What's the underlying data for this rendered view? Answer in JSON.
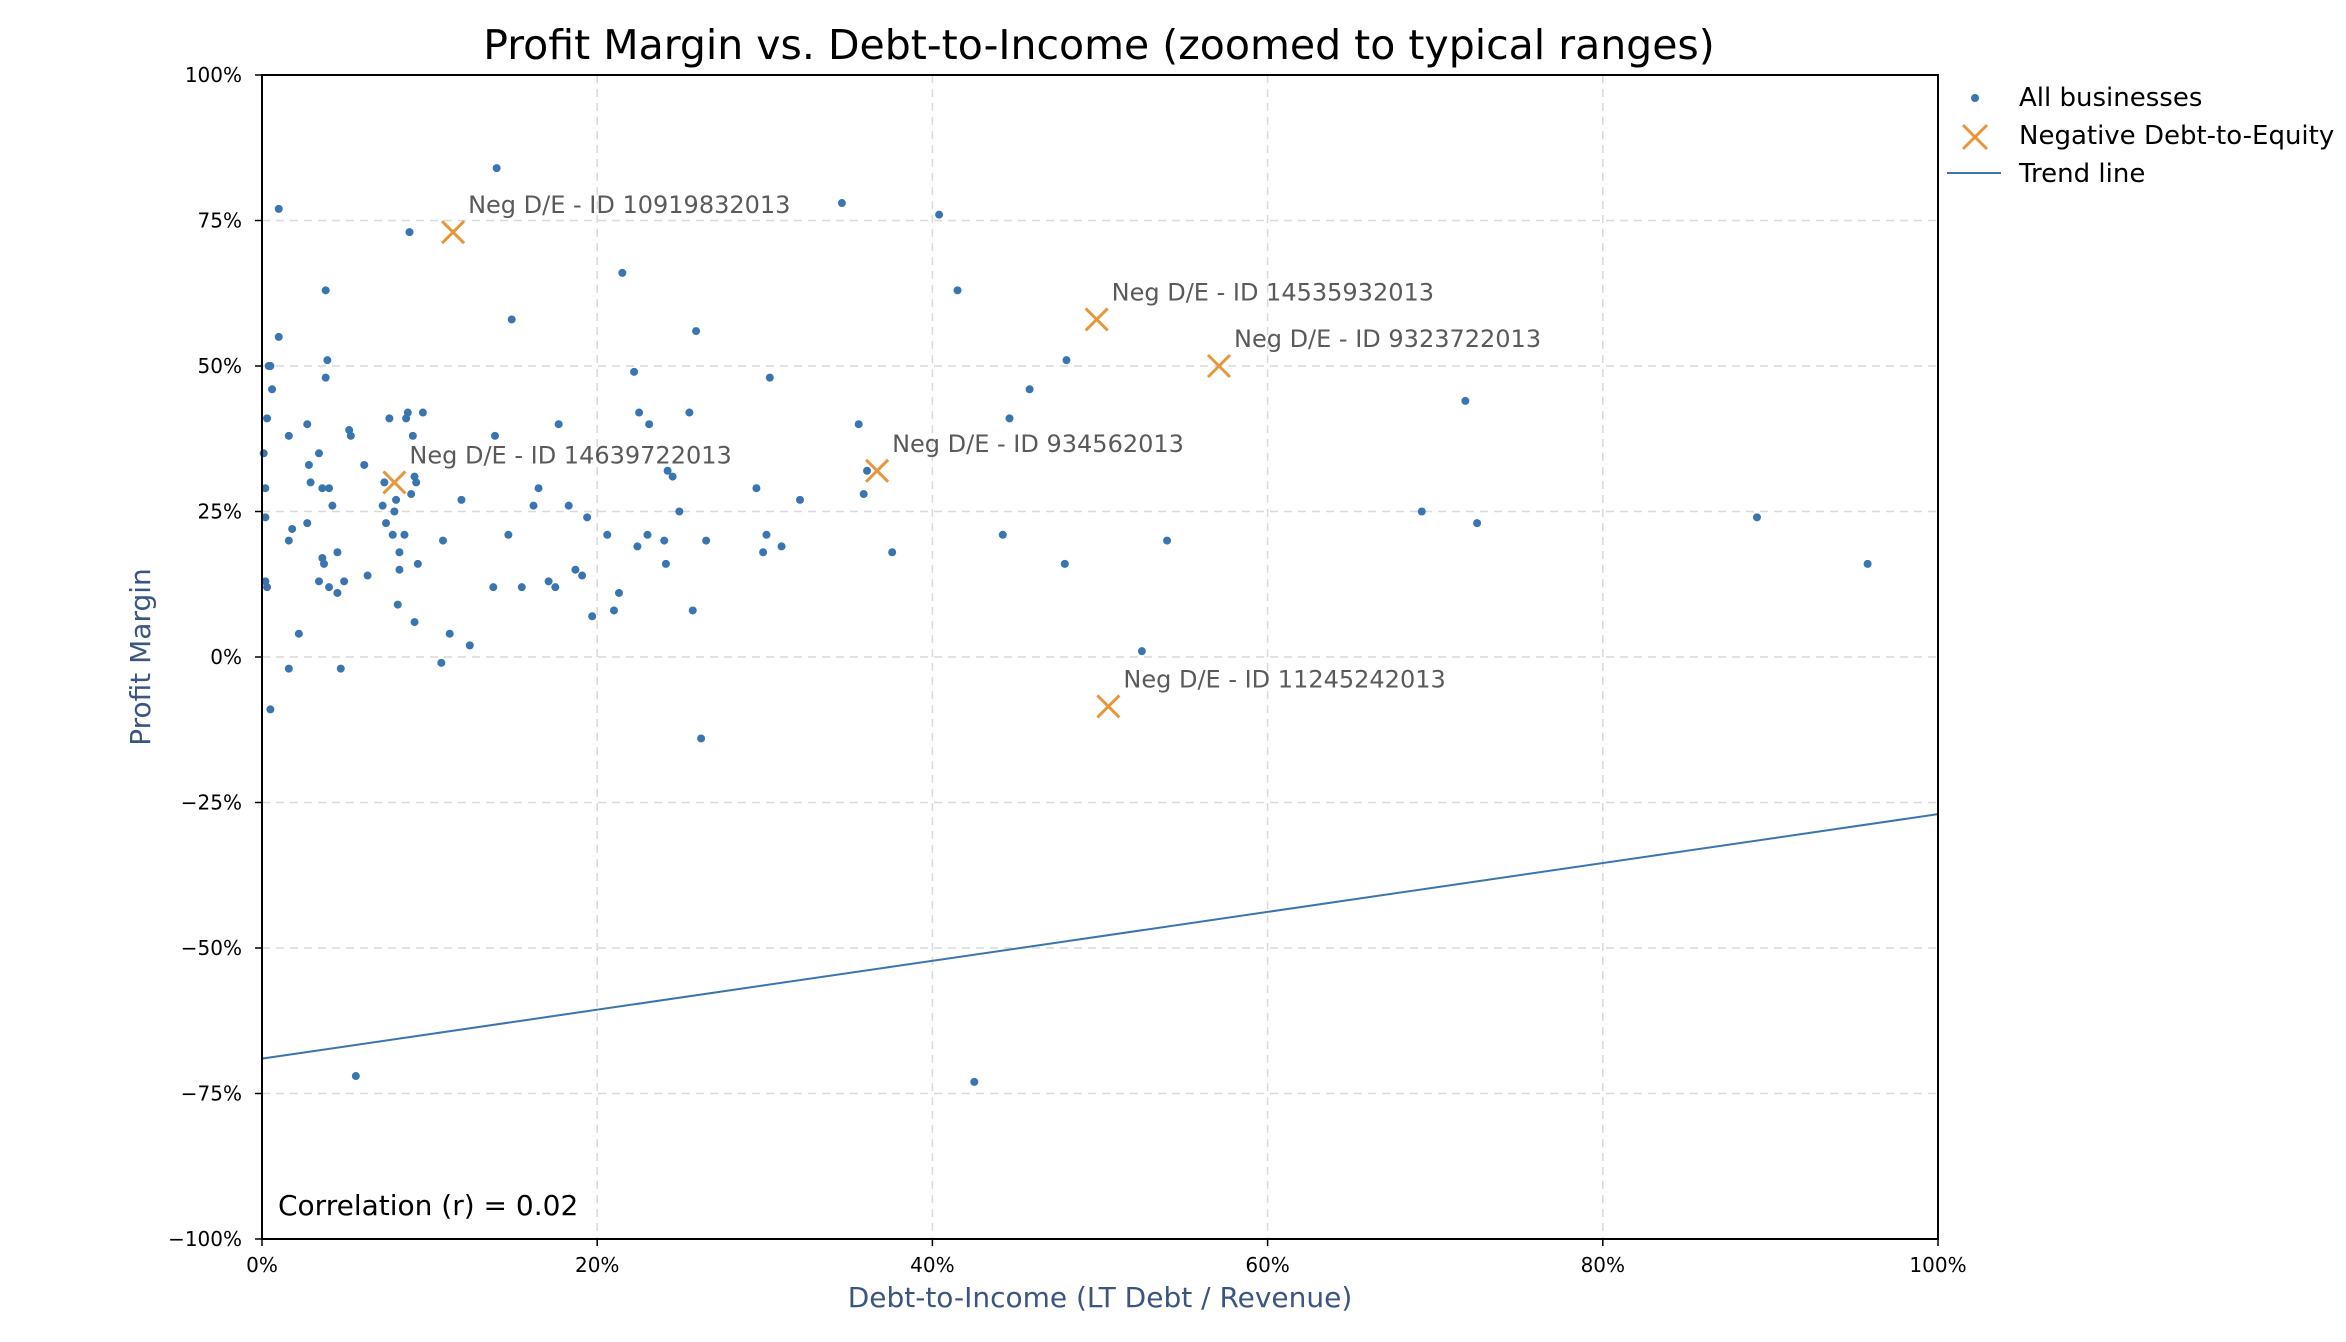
{
  "chart_data": {
    "type": "scatter",
    "title": "Profit Margin vs. Debt-to-Income (zoomed to typical ranges)",
    "xlabel": "Debt-to-Income (LT Debt / Revenue)",
    "ylabel": "Profit Margin",
    "xlim": [
      0,
      1
    ],
    "ylim": [
      -1,
      1
    ],
    "x_ticks": [
      {
        "value": 0,
        "label": "0%"
      },
      {
        "value": 0.2,
        "label": "20%"
      },
      {
        "value": 0.4,
        "label": "40%"
      },
      {
        "value": 0.6,
        "label": "60%"
      },
      {
        "value": 0.8,
        "label": "80%"
      },
      {
        "value": 1.0,
        "label": "100%"
      }
    ],
    "y_ticks": [
      {
        "value": 1.0,
        "label": "100%"
      },
      {
        "value": 0.75,
        "label": "75%"
      },
      {
        "value": 0.5,
        "label": "50%"
      },
      {
        "value": 0.25,
        "label": "25%"
      },
      {
        "value": 0,
        "label": "0%"
      },
      {
        "value": -0.25,
        "label": "−25%"
      },
      {
        "value": -0.5,
        "label": "−50%"
      },
      {
        "value": -0.75,
        "label": "−75%"
      },
      {
        "value": -1.0,
        "label": "−100%"
      }
    ],
    "grid": true,
    "legend_position": "outside-top-right",
    "colors": {
      "all": "#3a75b0",
      "neg": "#e8963b",
      "trend": "#3a75b0",
      "grid": "#d9d9d9"
    },
    "series": [
      {
        "name": "All businesses",
        "marker": "dot",
        "points": [
          [
            0.001,
            0.35
          ],
          [
            0.002,
            0.29
          ],
          [
            0.002,
            0.24
          ],
          [
            0.002,
            0.13
          ],
          [
            0.003,
            0.12
          ],
          [
            0.003,
            0.41
          ],
          [
            0.004,
            0.5
          ],
          [
            0.005,
            0.5
          ],
          [
            0.005,
            -0.09
          ],
          [
            0.006,
            0.46
          ],
          [
            0.01,
            0.77
          ],
          [
            0.01,
            0.55
          ],
          [
            0.016,
            0.38
          ],
          [
            0.016,
            0.2
          ],
          [
            0.016,
            -0.02
          ],
          [
            0.018,
            0.22
          ],
          [
            0.022,
            0.04
          ],
          [
            0.027,
            0.4
          ],
          [
            0.027,
            0.23
          ],
          [
            0.028,
            0.33
          ],
          [
            0.029,
            0.3
          ],
          [
            0.034,
            0.35
          ],
          [
            0.034,
            0.13
          ],
          [
            0.036,
            0.29
          ],
          [
            0.036,
            0.17
          ],
          [
            0.037,
            0.16
          ],
          [
            0.038,
            0.63
          ],
          [
            0.038,
            0.48
          ],
          [
            0.039,
            0.51
          ],
          [
            0.04,
            0.29
          ],
          [
            0.04,
            0.12
          ],
          [
            0.042,
            0.26
          ],
          [
            0.045,
            0.18
          ],
          [
            0.045,
            0.11
          ],
          [
            0.047,
            -0.02
          ],
          [
            0.049,
            0.13
          ],
          [
            0.052,
            0.39
          ],
          [
            0.053,
            0.38
          ],
          [
            0.061,
            0.33
          ],
          [
            0.063,
            0.14
          ],
          [
            0.072,
            0.26
          ],
          [
            0.073,
            0.3
          ],
          [
            0.074,
            0.23
          ],
          [
            0.076,
            0.41
          ],
          [
            0.078,
            0.21
          ],
          [
            0.079,
            0.25
          ],
          [
            0.08,
            0.27
          ],
          [
            0.081,
            0.09
          ],
          [
            0.082,
            0.18
          ],
          [
            0.082,
            0.15
          ],
          [
            0.085,
            0.21
          ],
          [
            0.086,
            0.41
          ],
          [
            0.087,
            0.42
          ],
          [
            0.088,
            0.73
          ],
          [
            0.089,
            0.28
          ],
          [
            0.09,
            0.38
          ],
          [
            0.091,
            0.31
          ],
          [
            0.091,
            0.06
          ],
          [
            0.092,
            0.3
          ],
          [
            0.093,
            0.16
          ],
          [
            0.096,
            0.42
          ],
          [
            0.107,
            -0.01
          ],
          [
            0.108,
            0.2
          ],
          [
            0.112,
            0.04
          ],
          [
            0.119,
            0.27
          ],
          [
            0.124,
            0.02
          ],
          [
            0.138,
            0.12
          ],
          [
            0.139,
            0.38
          ],
          [
            0.14,
            0.84
          ],
          [
            0.147,
            0.21
          ],
          [
            0.149,
            0.58
          ],
          [
            0.155,
            0.12
          ],
          [
            0.162,
            0.26
          ],
          [
            0.165,
            0.29
          ],
          [
            0.171,
            0.13
          ],
          [
            0.175,
            0.12
          ],
          [
            0.177,
            0.4
          ],
          [
            0.183,
            0.26
          ],
          [
            0.187,
            0.15
          ],
          [
            0.191,
            0.14
          ],
          [
            0.194,
            0.24
          ],
          [
            0.197,
            0.07
          ],
          [
            0.206,
            0.21
          ],
          [
            0.21,
            0.08
          ],
          [
            0.213,
            0.11
          ],
          [
            0.215,
            0.66
          ],
          [
            0.222,
            0.49
          ],
          [
            0.224,
            0.19
          ],
          [
            0.225,
            0.42
          ],
          [
            0.23,
            0.21
          ],
          [
            0.231,
            0.4
          ],
          [
            0.24,
            0.2
          ],
          [
            0.241,
            0.16
          ],
          [
            0.242,
            0.32
          ],
          [
            0.245,
            0.31
          ],
          [
            0.249,
            0.25
          ],
          [
            0.255,
            0.42
          ],
          [
            0.257,
            0.08
          ],
          [
            0.259,
            0.56
          ],
          [
            0.262,
            -0.14
          ],
          [
            0.265,
            0.2
          ],
          [
            0.295,
            0.29
          ],
          [
            0.299,
            0.18
          ],
          [
            0.301,
            0.21
          ],
          [
            0.303,
            0.48
          ],
          [
            0.31,
            0.19
          ],
          [
            0.321,
            0.27
          ],
          [
            0.346,
            0.78
          ],
          [
            0.356,
            0.4
          ],
          [
            0.359,
            0.28
          ],
          [
            0.361,
            0.32
          ],
          [
            0.376,
            0.18
          ],
          [
            0.404,
            0.76
          ],
          [
            0.415,
            0.63
          ],
          [
            0.425,
            -0.73
          ],
          [
            0.442,
            0.21
          ],
          [
            0.446,
            0.41
          ],
          [
            0.458,
            0.46
          ],
          [
            0.479,
            0.16
          ],
          [
            0.48,
            0.51
          ],
          [
            0.525,
            0.01
          ],
          [
            0.54,
            0.2
          ],
          [
            0.692,
            0.25
          ],
          [
            0.718,
            0.44
          ],
          [
            0.725,
            0.23
          ],
          [
            0.892,
            0.24
          ],
          [
            0.958,
            0.16
          ],
          [
            0.056,
            -0.72
          ]
        ]
      },
      {
        "name": "Negative Debt-to-Equity",
        "marker": "x",
        "points": [
          {
            "x": 0.114,
            "y": 0.73,
            "label": "Neg D/E - ID 10919832013"
          },
          {
            "x": 0.079,
            "y": 0.3,
            "label": "Neg D/E - ID 14639722013"
          },
          {
            "x": 0.498,
            "y": 0.58,
            "label": "Neg D/E - ID 14535932013"
          },
          {
            "x": 0.571,
            "y": 0.5,
            "label": "Neg D/E - ID 9323722013"
          },
          {
            "x": 0.367,
            "y": 0.32,
            "label": "Neg D/E - ID 934562013"
          },
          {
            "x": 0.505,
            "y": -0.085,
            "label": "Neg D/E - ID 11245242013"
          }
        ]
      },
      {
        "name": "Trend line",
        "marker": "line",
        "points": [
          [
            0,
            -0.69
          ],
          [
            1.0,
            -0.27
          ]
        ]
      }
    ],
    "annotation": "Correlation (r) = 0.02"
  }
}
